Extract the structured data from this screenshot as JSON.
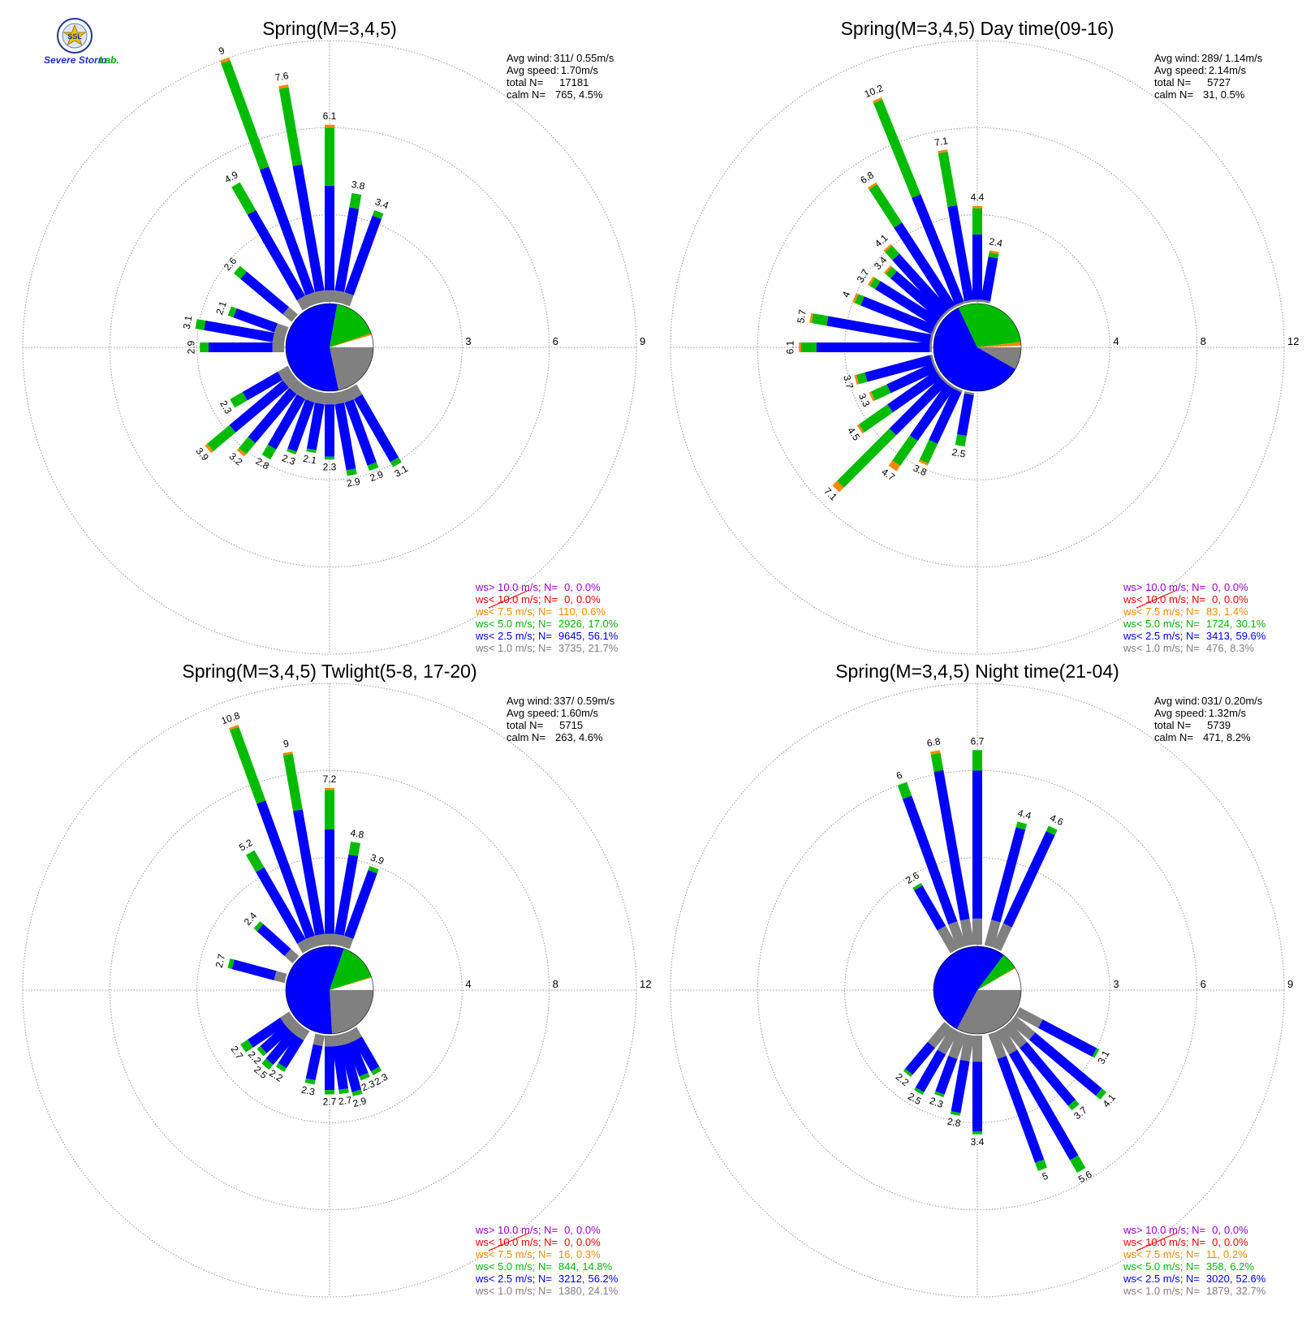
{
  "logo": {
    "seal_text": "SSL",
    "brand_main": "Severe Storm",
    "brand_suffix": "Lab."
  },
  "colors": {
    "lt1": "#808080",
    "lt25": "#0000ff",
    "lt5": "#00bb00",
    "lt75": "#ff8800",
    "lt10": "#ff0000",
    "gt10": "#9900cc",
    "grid": "#999999",
    "text": "#000000"
  },
  "legend_labels": {
    "gt10": "ws> 10.0 m/s; N=",
    "lt10": "ws< 10.0 m/s; N=",
    "lt75": "ws<  7.5 m/s; N=",
    "lt5": "ws<  5.0 m/s; N=",
    "lt25": "ws<  2.5 m/s; N=",
    "lt1": "ws<  1.0 m/s; N="
  },
  "stat_labels": {
    "avg_wind": "Avg wind:",
    "avg_speed": "Avg speed:",
    "total": "total N=",
    "calm": "calm N="
  },
  "chart_data": [
    {
      "type": "polar-stacked-bar",
      "title": "Spring(M=3,4,5)",
      "rings": [
        3,
        6,
        9
      ],
      "stats": {
        "avg_wind": "311/ 0.55m/s",
        "avg_speed": "1.70m/s",
        "total": "17181",
        "calm": "765,   4.5%"
      },
      "legend": [
        {
          "key": "gt10",
          "n": "0",
          "pct": "0.0%"
        },
        {
          "key": "lt10",
          "n": "0",
          "pct": "0.0%"
        },
        {
          "key": "lt75",
          "n": "110",
          "pct": "0.6%"
        },
        {
          "key": "lt5",
          "n": "2926",
          "pct": "17.0%"
        },
        {
          "key": "lt25",
          "n": "9645",
          "pct": "56.1%"
        },
        {
          "key": "lt1",
          "n": "3735",
          "pct": "21.7%"
        }
      ],
      "calm_pie": {
        "lt1": 21.7,
        "lt25": 56.1,
        "lt5": 17.0,
        "lt75": 0.6
      },
      "bars": [
        {
          "dir": 150,
          "total": 3.1,
          "lt1": 0.4,
          "lt25": 2.5,
          "lt5": 0.2,
          "lt75": 0.0
        },
        {
          "dir": 160,
          "total": 2.9,
          "lt1": 0.4,
          "lt25": 2.3,
          "lt5": 0.2,
          "lt75": 0.0
        },
        {
          "dir": 170,
          "total": 2.9,
          "lt1": 0.4,
          "lt25": 2.3,
          "lt5": 0.2,
          "lt75": 0.0
        },
        {
          "dir": 180,
          "total": 2.3,
          "lt1": 0.4,
          "lt25": 1.8,
          "lt5": 0.1,
          "lt75": 0.0
        },
        {
          "dir": 190,
          "total": 2.1,
          "lt1": 0.4,
          "lt25": 1.6,
          "lt5": 0.1,
          "lt75": 0.0
        },
        {
          "dir": 200,
          "total": 2.3,
          "lt1": 0.4,
          "lt25": 1.8,
          "lt5": 0.1,
          "lt75": 0.0
        },
        {
          "dir": 210,
          "total": 2.8,
          "lt1": 0.4,
          "lt25": 2.0,
          "lt5": 0.4,
          "lt75": 0.0
        },
        {
          "dir": 220,
          "total": 3.2,
          "lt1": 0.4,
          "lt25": 2.2,
          "lt5": 0.5,
          "lt75": 0.1
        },
        {
          "dir": 230,
          "total": 3.9,
          "lt1": 0.4,
          "lt25": 2.4,
          "lt5": 1.0,
          "lt75": 0.1
        },
        {
          "dir": 240,
          "total": 2.3,
          "lt1": 0.4,
          "lt25": 1.4,
          "lt5": 0.5,
          "lt75": 0.0
        },
        {
          "dir": 270,
          "total": 2.9,
          "lt1": 0.4,
          "lt25": 2.2,
          "lt5": 0.3,
          "lt75": 0.0
        },
        {
          "dir": 280,
          "total": 3.1,
          "lt1": 0.4,
          "lt25": 2.4,
          "lt5": 0.3,
          "lt75": 0.0
        },
        {
          "dir": 290,
          "total": 2.1,
          "lt1": 0.4,
          "lt25": 1.5,
          "lt5": 0.2,
          "lt75": 0.0
        },
        {
          "dir": 310,
          "total": 2.6,
          "lt1": 0.4,
          "lt25": 1.9,
          "lt5": 0.3,
          "lt75": 0.0
        },
        {
          "dir": 330,
          "total": 4.9,
          "lt1": 0.4,
          "lt25": 3.4,
          "lt5": 1.1,
          "lt75": 0.0
        },
        {
          "dir": 340,
          "total": 9.0,
          "lt1": 0.4,
          "lt25": 4.6,
          "lt5": 3.9,
          "lt75": 0.1
        },
        {
          "dir": 350,
          "total": 7.6,
          "lt1": 0.4,
          "lt25": 4.4,
          "lt5": 2.7,
          "lt75": 0.1
        },
        {
          "dir": 0,
          "total": 6.1,
          "lt1": 0.4,
          "lt25": 3.6,
          "lt5": 2.0,
          "lt75": 0.1
        },
        {
          "dir": 10,
          "total": 3.8,
          "lt1": 0.4,
          "lt25": 2.9,
          "lt5": 0.5,
          "lt75": 0.0
        },
        {
          "dir": 20,
          "total": 3.4,
          "lt1": 0.4,
          "lt25": 2.8,
          "lt5": 0.2,
          "lt75": 0.0
        }
      ]
    },
    {
      "type": "polar-stacked-bar",
      "title": "Spring(M=3,4,5) Day time(09-16)",
      "rings": [
        4,
        8,
        12
      ],
      "stats": {
        "avg_wind": "289/ 1.14m/s",
        "avg_speed": "2.14m/s",
        "total": "5727",
        "calm": "31,   0.5%"
      },
      "legend": [
        {
          "key": "gt10",
          "n": "0",
          "pct": "0.0%"
        },
        {
          "key": "lt10",
          "n": "0",
          "pct": "0.0%"
        },
        {
          "key": "lt75",
          "n": "83",
          "pct": "1.4%"
        },
        {
          "key": "lt5",
          "n": "1724",
          "pct": "30.1%"
        },
        {
          "key": "lt25",
          "n": "3413",
          "pct": "59.6%"
        },
        {
          "key": "lt1",
          "n": "476",
          "pct": "8.3%"
        }
      ],
      "calm_pie": {
        "lt1": 8.3,
        "lt25": 59.6,
        "lt5": 30.1,
        "lt75": 1.4
      },
      "bars": [
        {
          "dir": 190,
          "total": 2.5,
          "lt1": 0.1,
          "lt25": 1.9,
          "lt5": 0.5,
          "lt75": 0.0
        },
        {
          "dir": 205,
          "total": 3.8,
          "lt1": 0.1,
          "lt25": 2.6,
          "lt5": 1.0,
          "lt75": 0.1
        },
        {
          "dir": 215,
          "total": 4.7,
          "lt1": 0.1,
          "lt25": 2.9,
          "lt5": 1.4,
          "lt75": 0.3
        },
        {
          "dir": 225,
          "total": 7.1,
          "lt1": 0.1,
          "lt25": 3.3,
          "lt5": 3.4,
          "lt75": 0.3
        },
        {
          "dir": 235,
          "total": 4.5,
          "lt1": 0.1,
          "lt25": 2.7,
          "lt5": 1.6,
          "lt75": 0.1
        },
        {
          "dir": 245,
          "total": 3.3,
          "lt1": 0.1,
          "lt25": 2.3,
          "lt5": 0.8,
          "lt75": 0.1
        },
        {
          "dir": 255,
          "total": 3.7,
          "lt1": 0.1,
          "lt25": 3.1,
          "lt5": 0.4,
          "lt75": 0.1
        },
        {
          "dir": 270,
          "total": 6.1,
          "lt1": 0.1,
          "lt25": 5.2,
          "lt5": 0.7,
          "lt75": 0.1
        },
        {
          "dir": 280,
          "total": 5.7,
          "lt1": 0.1,
          "lt25": 4.8,
          "lt5": 0.7,
          "lt75": 0.1
        },
        {
          "dir": 292,
          "total": 4.0,
          "lt1": 0.1,
          "lt25": 3.5,
          "lt5": 0.3,
          "lt75": 0.1
        },
        {
          "dir": 302,
          "total": 3.7,
          "lt1": 0.1,
          "lt25": 3.2,
          "lt5": 0.3,
          "lt75": 0.1
        },
        {
          "dir": 311,
          "total": 3.4,
          "lt1": 0.1,
          "lt25": 2.9,
          "lt5": 0.3,
          "lt75": 0.1
        },
        {
          "dir": 318,
          "total": 4.1,
          "lt1": 0.1,
          "lt25": 3.4,
          "lt5": 0.5,
          "lt75": 0.1
        },
        {
          "dir": 327,
          "total": 6.8,
          "lt1": 0.1,
          "lt25": 4.5,
          "lt5": 2.1,
          "lt75": 0.1
        },
        {
          "dir": 338,
          "total": 10.2,
          "lt1": 0.1,
          "lt25": 5.3,
          "lt5": 4.7,
          "lt75": 0.1
        },
        {
          "dir": 350,
          "total": 7.1,
          "lt1": 0.1,
          "lt25": 4.4,
          "lt5": 2.5,
          "lt75": 0.1
        },
        {
          "dir": 0,
          "total": 4.4,
          "lt1": 0.1,
          "lt25": 3.0,
          "lt5": 1.2,
          "lt75": 0.1
        },
        {
          "dir": 10,
          "total": 2.4,
          "lt1": 0.1,
          "lt25": 2.0,
          "lt5": 0.2,
          "lt75": 0.1
        }
      ]
    },
    {
      "type": "polar-stacked-bar",
      "title": "Spring(M=3,4,5) Twlight(5-8, 17-20)",
      "rings": [
        4,
        8,
        12
      ],
      "stats": {
        "avg_wind": "337/ 0.59m/s",
        "avg_speed": "1.60m/s",
        "total": "5715",
        "calm": "263,   4.6%"
      },
      "legend": [
        {
          "key": "gt10",
          "n": "0",
          "pct": "0.0%"
        },
        {
          "key": "lt10",
          "n": "0",
          "pct": "0.0%"
        },
        {
          "key": "lt75",
          "n": "16",
          "pct": "0.3%"
        },
        {
          "key": "lt5",
          "n": "844",
          "pct": "14.8%"
        },
        {
          "key": "lt25",
          "n": "3212",
          "pct": "56.2%"
        },
        {
          "key": "lt1",
          "n": "1380",
          "pct": "24.1%"
        }
      ],
      "calm_pie": {
        "lt1": 24.1,
        "lt25": 56.2,
        "lt5": 14.8,
        "lt75": 0.3
      },
      "bars": [
        {
          "dir": 150,
          "total": 2.3,
          "lt1": 0.5,
          "lt25": 1.6,
          "lt5": 0.2,
          "lt75": 0.0
        },
        {
          "dir": 158,
          "total": 2.3,
          "lt1": 0.5,
          "lt25": 1.6,
          "lt5": 0.2,
          "lt75": 0.0
        },
        {
          "dir": 165,
          "total": 2.9,
          "lt1": 0.5,
          "lt25": 2.2,
          "lt5": 0.2,
          "lt75": 0.0
        },
        {
          "dir": 172,
          "total": 2.7,
          "lt1": 0.5,
          "lt25": 2.0,
          "lt5": 0.2,
          "lt75": 0.0
        },
        {
          "dir": 180,
          "total": 2.7,
          "lt1": 0.5,
          "lt25": 2.0,
          "lt5": 0.2,
          "lt75": 0.0
        },
        {
          "dir": 192,
          "total": 2.3,
          "lt1": 0.5,
          "lt25": 1.6,
          "lt5": 0.2,
          "lt75": 0.0
        },
        {
          "dir": 212,
          "total": 2.2,
          "lt1": 0.5,
          "lt25": 1.5,
          "lt5": 0.2,
          "lt75": 0.0
        },
        {
          "dir": 220,
          "total": 2.5,
          "lt1": 0.5,
          "lt25": 1.7,
          "lt5": 0.3,
          "lt75": 0.0
        },
        {
          "dir": 228,
          "total": 2.2,
          "lt1": 0.5,
          "lt25": 1.5,
          "lt5": 0.2,
          "lt75": 0.0
        },
        {
          "dir": 236,
          "total": 2.7,
          "lt1": 0.5,
          "lt25": 1.8,
          "lt5": 0.4,
          "lt75": 0.0
        },
        {
          "dir": 285,
          "total": 2.7,
          "lt1": 0.5,
          "lt25": 2.0,
          "lt5": 0.2,
          "lt75": 0.0
        },
        {
          "dir": 312,
          "total": 2.4,
          "lt1": 0.5,
          "lt25": 1.7,
          "lt5": 0.2,
          "lt75": 0.0
        },
        {
          "dir": 330,
          "total": 5.2,
          "lt1": 0.5,
          "lt25": 3.8,
          "lt5": 0.9,
          "lt75": 0.0
        },
        {
          "dir": 340,
          "total": 10.8,
          "lt1": 0.5,
          "lt25": 6.6,
          "lt5": 3.6,
          "lt75": 0.1
        },
        {
          "dir": 350,
          "total": 9.0,
          "lt1": 0.5,
          "lt25": 5.8,
          "lt5": 2.6,
          "lt75": 0.1
        },
        {
          "dir": 0,
          "total": 7.2,
          "lt1": 0.5,
          "lt25": 4.8,
          "lt5": 1.8,
          "lt75": 0.1
        },
        {
          "dir": 10,
          "total": 4.8,
          "lt1": 0.5,
          "lt25": 3.7,
          "lt5": 0.6,
          "lt75": 0.0
        },
        {
          "dir": 20,
          "total": 3.9,
          "lt1": 0.5,
          "lt25": 3.2,
          "lt5": 0.2,
          "lt75": 0.0
        }
      ]
    },
    {
      "type": "polar-stacked-bar",
      "title": "Spring(M=3,4,5) Night time(21-04)",
      "rings": [
        3,
        6,
        9
      ],
      "stats": {
        "avg_wind": "031/ 0.20m/s",
        "avg_speed": "1.32m/s",
        "total": "5739",
        "calm": "471,   8.2%"
      },
      "legend": [
        {
          "key": "gt10",
          "n": "0",
          "pct": "0.0%"
        },
        {
          "key": "lt10",
          "n": "0",
          "pct": "0.0%"
        },
        {
          "key": "lt75",
          "n": "11",
          "pct": "0.2%"
        },
        {
          "key": "lt5",
          "n": "358",
          "pct": "6.2%"
        },
        {
          "key": "lt25",
          "n": "3020",
          "pct": "52.6%"
        },
        {
          "key": "lt1",
          "n": "1879",
          "pct": "32.7%"
        }
      ],
      "calm_pie": {
        "lt1": 32.7,
        "lt25": 52.6,
        "lt5": 6.2,
        "lt75": 0.2
      },
      "bars": [
        {
          "dir": 118,
          "total": 3.1,
          "lt1": 0.9,
          "lt25": 2.1,
          "lt5": 0.1,
          "lt75": 0.0
        },
        {
          "dir": 130,
          "total": 4.1,
          "lt1": 0.9,
          "lt25": 3.0,
          "lt5": 0.2,
          "lt75": 0.0
        },
        {
          "dir": 140,
          "total": 3.7,
          "lt1": 0.9,
          "lt25": 2.6,
          "lt5": 0.2,
          "lt75": 0.0
        },
        {
          "dir": 150,
          "total": 5.6,
          "lt1": 0.9,
          "lt25": 4.2,
          "lt5": 0.5,
          "lt75": 0.0
        },
        {
          "dir": 160,
          "total": 5.0,
          "lt1": 0.9,
          "lt25": 3.8,
          "lt5": 0.3,
          "lt75": 0.0
        },
        {
          "dir": 180,
          "total": 3.4,
          "lt1": 0.9,
          "lt25": 2.4,
          "lt5": 0.1,
          "lt75": 0.0
        },
        {
          "dir": 190,
          "total": 2.8,
          "lt1": 0.9,
          "lt25": 1.8,
          "lt5": 0.1,
          "lt75": 0.0
        },
        {
          "dir": 200,
          "total": 2.3,
          "lt1": 0.9,
          "lt25": 1.3,
          "lt5": 0.1,
          "lt75": 0.0
        },
        {
          "dir": 210,
          "total": 2.5,
          "lt1": 0.9,
          "lt25": 1.5,
          "lt5": 0.1,
          "lt75": 0.0
        },
        {
          "dir": 220,
          "total": 2.2,
          "lt1": 0.9,
          "lt25": 1.2,
          "lt5": 0.1,
          "lt75": 0.0
        },
        {
          "dir": 330,
          "total": 2.6,
          "lt1": 0.9,
          "lt25": 1.6,
          "lt5": 0.1,
          "lt75": 0.0
        },
        {
          "dir": 340,
          "total": 6.0,
          "lt1": 0.9,
          "lt25": 4.6,
          "lt5": 0.5,
          "lt75": 0.0
        },
        {
          "dir": 350,
          "total": 6.8,
          "lt1": 0.9,
          "lt25": 5.2,
          "lt5": 0.6,
          "lt75": 0.1
        },
        {
          "dir": 0,
          "total": 6.7,
          "lt1": 0.9,
          "lt25": 5.1,
          "lt5": 0.7,
          "lt75": 0.0
        },
        {
          "dir": 15,
          "total": 4.4,
          "lt1": 0.9,
          "lt25": 3.3,
          "lt5": 0.2,
          "lt75": 0.0
        },
        {
          "dir": 25,
          "total": 4.6,
          "lt1": 0.9,
          "lt25": 3.5,
          "lt5": 0.2,
          "lt75": 0.0
        }
      ]
    }
  ]
}
